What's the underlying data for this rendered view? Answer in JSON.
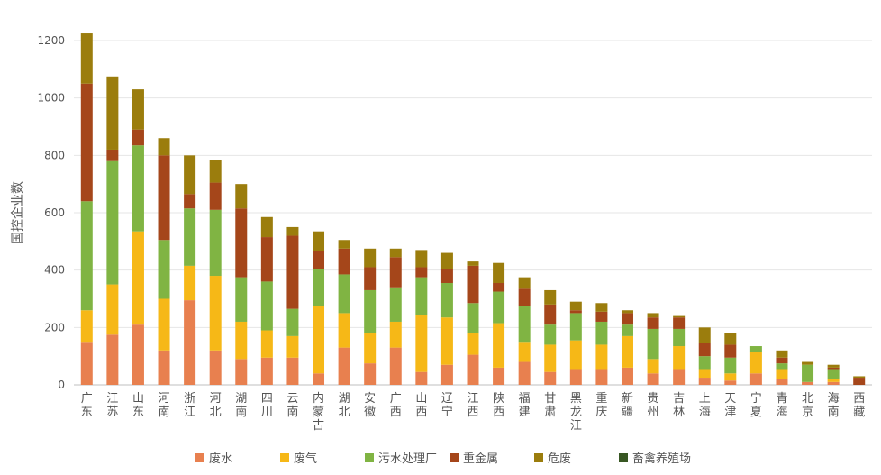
{
  "chart_data": {
    "type": "bar",
    "stacked": true,
    "title": "",
    "ylabel": "国控企业数",
    "ylim": [
      0,
      1200
    ],
    "yticks": [
      0,
      200,
      400,
      600,
      800,
      1000,
      1200
    ],
    "grid": true,
    "legend_position": "bottom",
    "categories": [
      "广东",
      "江苏",
      "山东",
      "河南",
      "浙江",
      "河北",
      "湖南",
      "四川",
      "云南",
      "内蒙古",
      "湖北",
      "安徽",
      "广西",
      "山西",
      "辽宁",
      "江西",
      "陕西",
      "福建",
      "甘肃",
      "黑龙江",
      "重庆",
      "新疆",
      "贵州",
      "吉林",
      "上海",
      "天津",
      "宁夏",
      "青海",
      "北京",
      "海南",
      "西藏"
    ],
    "series": [
      {
        "name": "废水",
        "color": "#e8804f",
        "values": [
          150,
          175,
          210,
          120,
          295,
          120,
          90,
          95,
          95,
          40,
          130,
          75,
          130,
          45,
          70,
          105,
          60,
          80,
          45,
          55,
          55,
          60,
          40,
          55,
          25,
          15,
          40,
          20,
          10,
          10,
          0
        ]
      },
      {
        "name": "废气",
        "color": "#f6b817",
        "values": [
          110,
          175,
          325,
          180,
          120,
          260,
          130,
          95,
          75,
          235,
          120,
          105,
          90,
          200,
          165,
          75,
          155,
          70,
          95,
          100,
          85,
          110,
          50,
          80,
          30,
          25,
          75,
          35,
          0,
          10,
          0
        ]
      },
      {
        "name": "污水处理厂",
        "color": "#80b443",
        "values": [
          380,
          430,
          300,
          205,
          200,
          230,
          155,
          170,
          95,
          130,
          135,
          150,
          120,
          130,
          120,
          105,
          110,
          125,
          70,
          95,
          80,
          40,
          105,
          60,
          45,
          55,
          20,
          20,
          60,
          35,
          0
        ]
      },
      {
        "name": "重金属",
        "color": "#a5461a",
        "values": [
          410,
          40,
          55,
          295,
          50,
          95,
          240,
          155,
          255,
          60,
          90,
          80,
          105,
          35,
          50,
          130,
          30,
          60,
          70,
          10,
          35,
          40,
          40,
          40,
          45,
          45,
          0,
          20,
          0,
          5,
          25
        ]
      },
      {
        "name": "危废",
        "color": "#9b7d0d",
        "values": [
          175,
          255,
          140,
          60,
          135,
          80,
          85,
          70,
          30,
          70,
          30,
          65,
          30,
          60,
          55,
          15,
          70,
          40,
          50,
          30,
          30,
          10,
          15,
          5,
          55,
          40,
          0,
          25,
          10,
          10,
          5
        ]
      },
      {
        "name": "畜禽养殖场",
        "color": "#385723",
        "values": [
          0,
          0,
          0,
          0,
          0,
          0,
          0,
          0,
          0,
          0,
          0,
          0,
          0,
          0,
          0,
          0,
          0,
          0,
          0,
          0,
          0,
          0,
          0,
          0,
          0,
          0,
          0,
          0,
          0,
          0,
          0
        ]
      }
    ]
  }
}
